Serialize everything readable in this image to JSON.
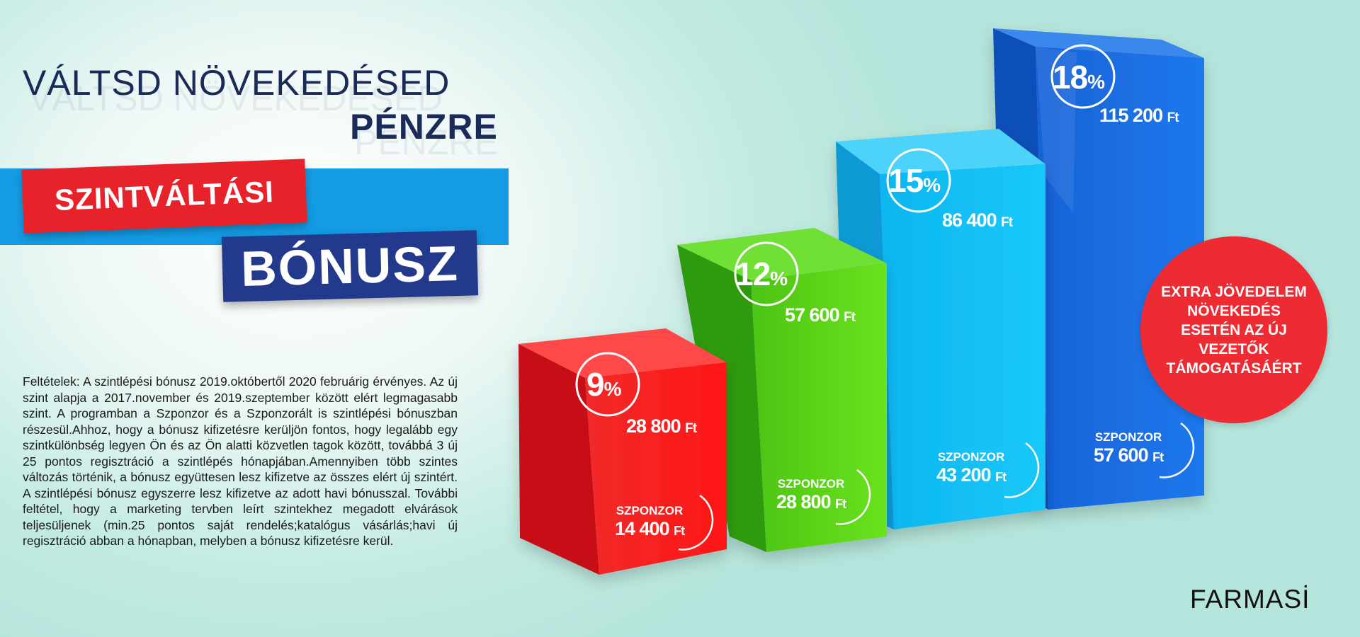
{
  "headline": {
    "line1": "VÁLTSD NÖVEKEDÉSED",
    "line2": "PÉNZRE"
  },
  "banner": {
    "red_label": "SZINTVÁLTÁSI",
    "navy_label": "BÓNUSZ"
  },
  "terms": "Feltételek: A szintlépési bónusz 2019.októbertől 2020 februárig érvényes. Az új szint alapja a 2017.november és 2019.szeptember között elért legmagasabb szint. A programban a Szponzor és a Szponzorált is szintlépési bónuszban részesül.Ahhoz, hogy a bónusz kifizetésre kerüljön fontos, hogy legalább egy szintkülönbség legyen Ön és az Ön alatti közvetlen tagok között, továbbá 3 új 25 pontos regisztráció a szintlépés hónapjában.Amennyiben több szintes változás történik, a bónusz együttesen lesz kifizetve az összes elért új szintért. A szintlépési bónusz egyszerre lesz kifizetve az adott havi bónusszal. További feltétel, hogy a marketing tervben leírt szintekhez megadott elvárások teljesüljenek (min.25 pontos saját rendelés;katalógus vásárlás;havi új regisztráció abban a hónapban, melyben a bónusz kifizetésre kerül.",
  "colors": {
    "red": "#e8222b",
    "green": "#5fd31a",
    "cyan": "#12c1f4",
    "blue": "#1a6fe0",
    "navy": "#233a8c"
  },
  "bars": [
    {
      "pct": "9",
      "pct_sign": "%",
      "amount": "28 800",
      "currency": "Ft",
      "sponsor_label": "SZPONZOR",
      "sponsor_amount": "14 400",
      "sponsor_currency": "Ft"
    },
    {
      "pct": "12",
      "pct_sign": "%",
      "amount": "57 600",
      "currency": "Ft",
      "sponsor_label": "SZPONZOR",
      "sponsor_amount": "28 800",
      "sponsor_currency": "Ft"
    },
    {
      "pct": "15",
      "pct_sign": "%",
      "amount": "86 400",
      "currency": "Ft",
      "sponsor_label": "SZPONZOR",
      "sponsor_amount": "43 200",
      "sponsor_currency": "Ft"
    },
    {
      "pct": "18",
      "pct_sign": "%",
      "amount": "115 200",
      "currency": "Ft",
      "sponsor_label": "SZPONZOR",
      "sponsor_amount": "57 600",
      "sponsor_currency": "Ft"
    }
  ],
  "extra_badge": "EXTRA JÖVEDELEM NÖVEKEDÉS ESETÉN AZ ÚJ VEZETŐK TÁMOGATÁSÁÉRT",
  "brand": "FARMASİ"
}
